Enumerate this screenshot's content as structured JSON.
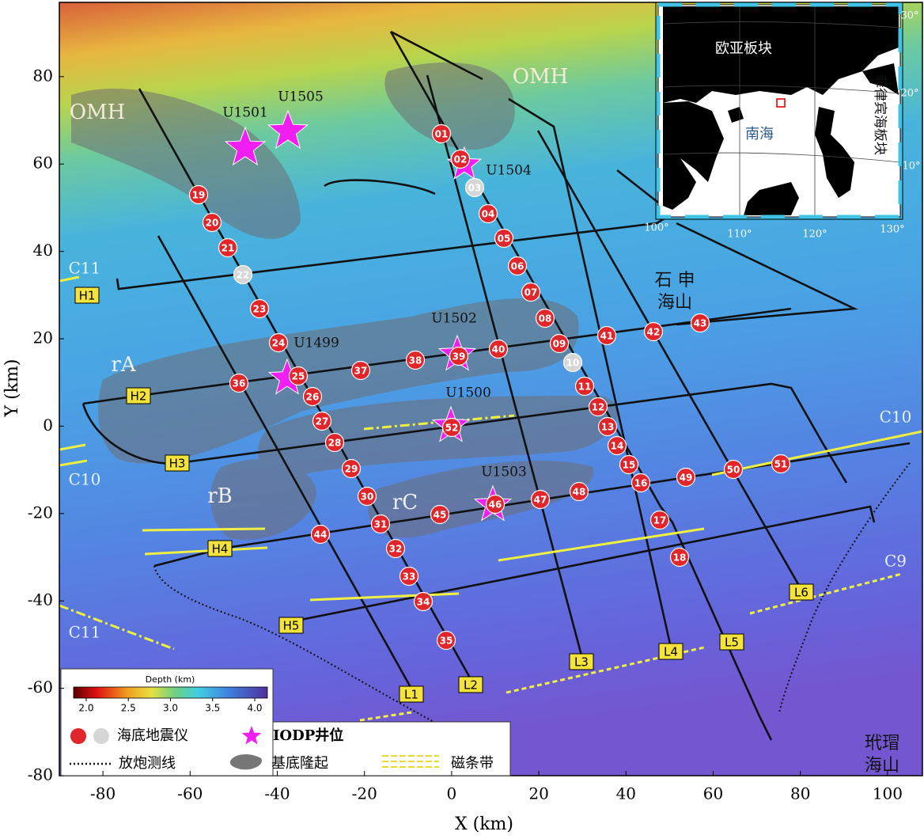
{
  "axes": {
    "xlabel": "X (km)",
    "ylabel": "Y (km)",
    "xlim": [
      -90,
      108
    ],
    "ylim": [
      -80,
      97
    ],
    "xticks": [
      -80,
      -60,
      -40,
      -20,
      0,
      20,
      40,
      60,
      80,
      100
    ],
    "yticks": [
      -80,
      -60,
      -40,
      -20,
      0,
      20,
      40,
      60,
      80
    ]
  },
  "stations": [
    {
      "id": "01",
      "color": "#e0262a"
    },
    {
      "id": "02",
      "color": "#e0262a"
    },
    {
      "id": "03",
      "color": "#d6d6d6"
    },
    {
      "id": "04",
      "color": "#e0262a"
    },
    {
      "id": "05",
      "color": "#e0262a"
    },
    {
      "id": "06",
      "color": "#e0262a"
    },
    {
      "id": "07",
      "color": "#e0262a"
    },
    {
      "id": "08",
      "color": "#e0262a"
    },
    {
      "id": "09",
      "color": "#e0262a"
    },
    {
      "id": "10",
      "color": "#d6d6d6"
    },
    {
      "id": "11",
      "color": "#e0262a"
    },
    {
      "id": "12",
      "color": "#e0262a"
    },
    {
      "id": "13",
      "color": "#e0262a"
    },
    {
      "id": "14",
      "color": "#e0262a"
    },
    {
      "id": "15",
      "color": "#e0262a"
    },
    {
      "id": "16",
      "color": "#e0262a"
    },
    {
      "id": "17",
      "color": "#e0262a"
    },
    {
      "id": "18",
      "color": "#e0262a"
    },
    {
      "id": "19",
      "color": "#e0262a"
    },
    {
      "id": "20",
      "color": "#e0262a"
    },
    {
      "id": "21",
      "color": "#e0262a"
    },
    {
      "id": "22",
      "color": "#d6d6d6"
    },
    {
      "id": "23",
      "color": "#e0262a"
    },
    {
      "id": "24",
      "color": "#e0262a"
    },
    {
      "id": "25",
      "color": "#e0262a"
    },
    {
      "id": "26",
      "color": "#e0262a"
    },
    {
      "id": "27",
      "color": "#e0262a"
    },
    {
      "id": "28",
      "color": "#e0262a"
    },
    {
      "id": "29",
      "color": "#e0262a"
    },
    {
      "id": "30",
      "color": "#e0262a"
    },
    {
      "id": "31",
      "color": "#e0262a"
    },
    {
      "id": "32",
      "color": "#e0262a"
    },
    {
      "id": "33",
      "color": "#e0262a"
    },
    {
      "id": "34",
      "color": "#e0262a"
    },
    {
      "id": "35",
      "color": "#e0262a"
    },
    {
      "id": "36",
      "color": "#e0262a"
    },
    {
      "id": "37",
      "color": "#e0262a"
    },
    {
      "id": "38",
      "color": "#e0262a"
    },
    {
      "id": "39",
      "color": "#e0262a"
    },
    {
      "id": "40",
      "color": "#e0262a"
    },
    {
      "id": "41",
      "color": "#e0262a"
    },
    {
      "id": "42",
      "color": "#e0262a"
    },
    {
      "id": "43",
      "color": "#e0262a"
    },
    {
      "id": "44",
      "color": "#e0262a"
    },
    {
      "id": "45",
      "color": "#e0262a"
    },
    {
      "id": "46",
      "color": "#e0262a"
    },
    {
      "id": "47",
      "color": "#e0262a"
    },
    {
      "id": "48",
      "color": "#e0262a"
    },
    {
      "id": "49",
      "color": "#e0262a"
    },
    {
      "id": "50",
      "color": "#e0262a"
    },
    {
      "id": "51",
      "color": "#e0262a"
    },
    {
      "id": "52",
      "color": "#e0262a"
    }
  ],
  "wells": [
    "U1501",
    "U1505",
    "U1504",
    "U1499",
    "U1502",
    "U1500",
    "U1503"
  ],
  "lines": [
    "L1",
    "L2",
    "L3",
    "L4",
    "L5",
    "L6",
    "H1",
    "H2",
    "H3",
    "H4",
    "H5"
  ],
  "magnetic": [
    "C11",
    "C10",
    "C11",
    "C10",
    "C9"
  ],
  "ridges": [
    "rA",
    "rB",
    "rC"
  ],
  "omh": [
    "OMH",
    "OMH"
  ],
  "seamounts": [
    [
      "石 申",
      "海山"
    ],
    [
      "玳瑁",
      "海山"
    ]
  ],
  "inset": {
    "labels": [
      "欧亚板块",
      "南海",
      "菲律宾海板块"
    ],
    "lon": [
      "100°",
      "110°",
      "120°",
      "130°"
    ],
    "lat": [
      "10°",
      "20°",
      "30°"
    ]
  },
  "legend": {
    "colorbar": {
      "title": "Depth (km)",
      "lim": [
        1.85,
        4.15
      ],
      "ticks": [
        {
          "value": 2,
          "label": "2.0"
        },
        {
          "value": 2.5,
          "label": "2.5"
        },
        {
          "value": 3,
          "label": "3.0"
        },
        {
          "value": 3.5,
          "label": "3.5"
        },
        {
          "value": 4,
          "label": "4.0"
        }
      ]
    },
    "items": [
      "海底地震仪",
      "IODP井位",
      "放炮测线",
      "基底隆起",
      "磁条带"
    ]
  }
}
